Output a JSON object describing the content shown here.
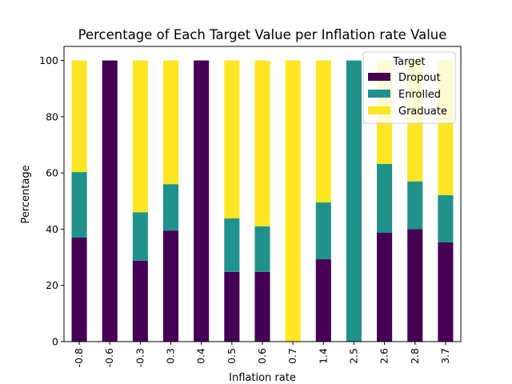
{
  "chart_data": {
    "type": "bar",
    "stacked": true,
    "title": "Percentage of Each Target Value per Inflation rate Value",
    "xlabel": "Inflation rate",
    "ylabel": "Percentage",
    "ylim": [
      0,
      105
    ],
    "yticks": [
      0,
      20,
      40,
      60,
      80,
      100
    ],
    "categories": [
      "-0.8",
      "-0.6",
      "-0.3",
      "0.3",
      "0.4",
      "0.5",
      "0.6",
      "0.7",
      "1.4",
      "2.5",
      "2.6",
      "2.8",
      "3.7"
    ],
    "series": [
      {
        "name": "Dropout",
        "color": "#440154",
        "values": [
          37.0,
          100,
          28.8,
          39.5,
          100,
          24.8,
          24.8,
          0,
          29.3,
          0,
          38.7,
          40.0,
          35.3
        ]
      },
      {
        "name": "Enrolled",
        "color": "#21918c",
        "values": [
          23.3,
          0,
          17.2,
          16.5,
          0,
          19.0,
          16.2,
          0,
          20.2,
          100,
          24.5,
          17.0,
          16.8
        ]
      },
      {
        "name": "Graduate",
        "color": "#fde725",
        "values": [
          39.7,
          0,
          54.0,
          44.0,
          0,
          56.2,
          59.0,
          100,
          50.5,
          0,
          36.8,
          43.0,
          47.9
        ]
      }
    ],
    "legend": {
      "title": "Target",
      "position": "top-right"
    },
    "grid": false
  }
}
